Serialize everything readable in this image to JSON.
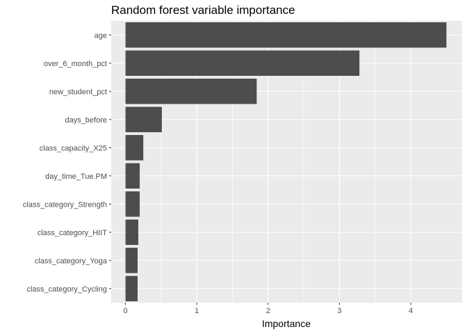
{
  "chart_data": {
    "type": "bar",
    "orientation": "horizontal",
    "title": "Random forest variable importance",
    "xlabel": "Importance",
    "ylabel": "",
    "categories": [
      "age",
      "over_6_month_pct",
      "new_student_pct",
      "days_before",
      "class_capacity_X25",
      "day_time_Tue.PM",
      "class_category_Strength",
      "class_category_HIIT",
      "class_category_Yoga",
      "class_category_Cycling"
    ],
    "values": [
      4.5,
      3.28,
      1.84,
      0.51,
      0.25,
      0.2,
      0.2,
      0.18,
      0.17,
      0.17
    ],
    "xlim": [
      -0.2,
      4.72
    ],
    "xticks": [
      0,
      1,
      2,
      3,
      4
    ],
    "grid": true,
    "legend": "none",
    "colors": {
      "bar": "#4d4d4d",
      "panel": "#ebebeb",
      "grid": "#ffffff"
    }
  }
}
